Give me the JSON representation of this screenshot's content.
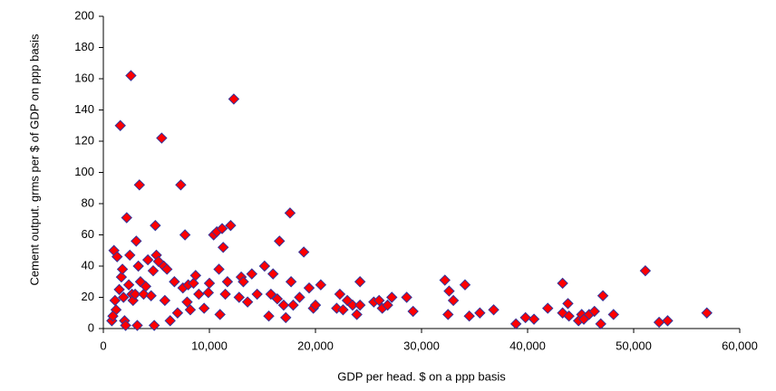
{
  "chart_data": {
    "type": "scatter",
    "x_label": "GDP per head. $ on a ppp basis",
    "y_label": "Cement output. grms per $ of GDP on ppp basis",
    "xlim": [
      0,
      60000
    ],
    "xticks": [
      0,
      {
        "value": 10000,
        "label": "10,000"
      },
      {
        "value": 20000,
        "label": "20,000"
      },
      {
        "value": 30000,
        "label": "30,000"
      },
      {
        "value": 40000,
        "label": "40,000"
      },
      {
        "value": 50000,
        "label": "50,000"
      },
      {
        "value": 60000,
        "label": "60,000"
      }
    ],
    "ylim": [
      0,
      200
    ],
    "yticks": [
      0,
      20,
      40,
      60,
      80,
      100,
      120,
      140,
      160,
      180,
      200
    ],
    "color": "#ff0000",
    "edge_color": "#333399",
    "x": [
      1000,
      1200,
      800,
      900,
      1100,
      1300,
      1500,
      1600,
      1700,
      1800,
      1900,
      2000,
      2100,
      2200,
      2400,
      2500,
      2600,
      2700,
      2800,
      3000,
      3100,
      3200,
      3300,
      3400,
      3500,
      3800,
      4000,
      4200,
      4500,
      4700,
      4800,
      4900,
      5000,
      5200,
      5500,
      5700,
      5800,
      6000,
      6300,
      6700,
      7000,
      7300,
      7500,
      7700,
      7900,
      8000,
      8200,
      8500,
      8700,
      9000,
      9500,
      9900,
      10000,
      10400,
      10700,
      10900,
      11000,
      11200,
      11300,
      11500,
      11700,
      12000,
      12300,
      12800,
      13000,
      13200,
      13600,
      14000,
      14500,
      15200,
      15600,
      15800,
      16000,
      16400,
      16600,
      17000,
      17200,
      17600,
      17700,
      17900,
      18500,
      18900,
      19400,
      19800,
      20000,
      20500,
      22000,
      22300,
      22600,
      23000,
      23500,
      23900,
      24200,
      24200,
      25500,
      26000,
      26300,
      26800,
      27200,
      28600,
      29200,
      32200,
      32500,
      32600,
      33000,
      34100,
      34500,
      35500,
      36800,
      38900,
      39800,
      40600,
      41900,
      43300,
      43300,
      43800,
      43900,
      44800,
      45100,
      45300,
      45800,
      46300,
      46900,
      47100,
      48100,
      51100,
      52400,
      53200,
      56900
    ],
    "values": [
      50,
      12,
      5,
      8,
      18,
      46,
      25,
      130,
      33,
      38,
      20,
      5,
      2,
      71,
      28,
      47,
      162,
      22,
      18,
      22,
      56,
      2,
      40,
      92,
      30,
      22,
      27,
      44,
      21,
      37,
      2,
      66,
      47,
      43,
      122,
      40,
      18,
      38,
      5,
      30,
      10,
      92,
      26,
      60,
      17,
      28,
      12,
      29,
      34,
      22,
      13,
      23,
      29,
      60,
      62,
      38,
      9,
      64,
      52,
      22,
      30,
      66,
      147,
      20,
      33,
      30,
      17,
      35,
      22,
      40,
      8,
      22,
      35,
      19,
      56,
      15,
      7,
      74,
      30,
      15,
      20,
      49,
      26,
      13,
      15,
      28,
      13,
      22,
      12,
      18,
      15,
      9,
      30,
      15,
      17,
      18,
      13,
      15,
      20,
      20,
      11,
      31,
      9,
      24,
      18,
      28,
      8,
      10,
      12,
      3,
      7,
      6,
      13,
      29,
      10,
      16,
      8,
      5,
      9,
      6,
      9,
      11,
      3,
      21,
      9,
      37,
      4,
      5,
      10
    ]
  }
}
